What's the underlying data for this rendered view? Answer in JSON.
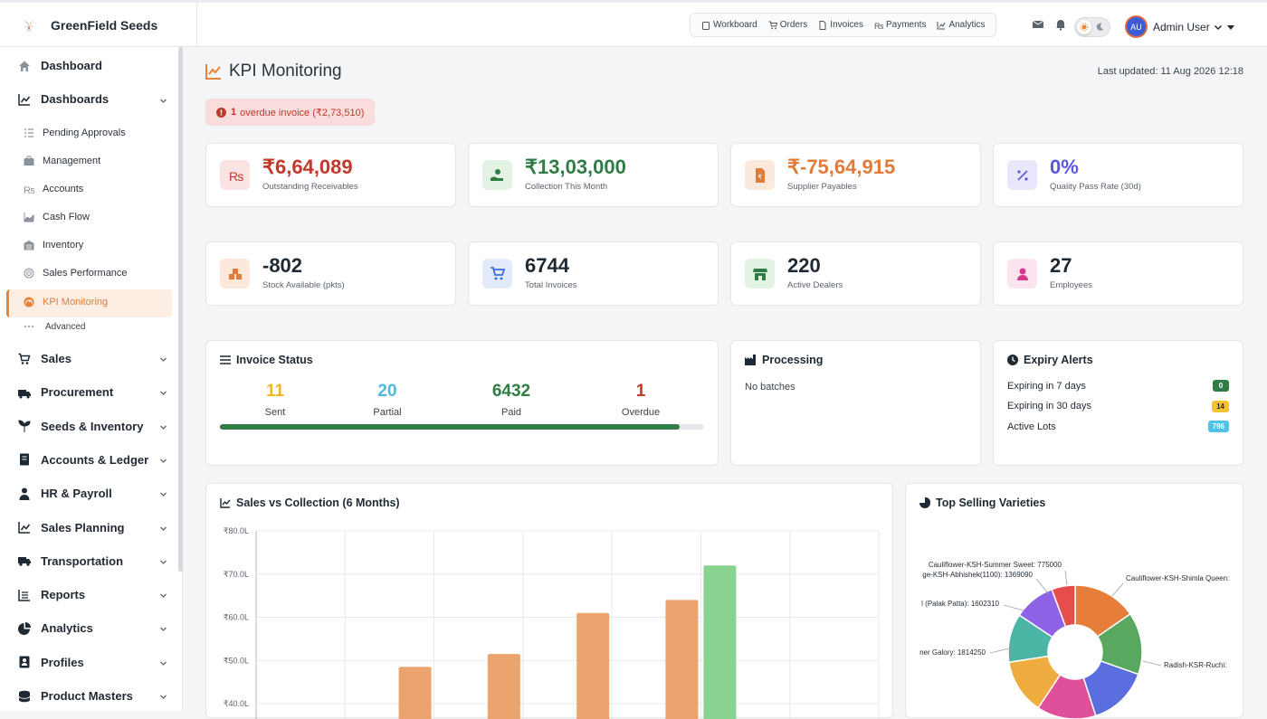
{
  "app": {
    "name": "GreenField Seeds"
  },
  "topnav": {
    "items": [
      "Workboard",
      "Orders",
      "Invoices",
      "Payments",
      "Analytics"
    ],
    "user": {
      "initials": "AU",
      "name": "Admin User"
    }
  },
  "sidebar": {
    "dashboard": "Dashboard",
    "dashboards": "Dashboards",
    "sub_items": [
      "Pending Approvals",
      "Management",
      "Accounts",
      "Cash Flow",
      "Inventory",
      "Sales Performance",
      "KPI Monitoring"
    ],
    "advanced": "Advanced",
    "groups": [
      "Sales",
      "Procurement",
      "Seeds & Inventory",
      "Accounts & Ledger",
      "HR & Payroll",
      "Sales Planning",
      "Transportation",
      "Reports",
      "Analytics",
      "Profiles",
      "Product Masters"
    ]
  },
  "page": {
    "title": "KPI Monitoring",
    "last_updated": "Last updated: 11 Aug 2026 12:18",
    "alert": {
      "count": "1",
      "text": "overdue invoice (₹2,73,510)"
    }
  },
  "kpis": [
    {
      "value": "₹6,64,089",
      "label": "Outstanding Receivables",
      "color": "#c0392b",
      "bg": "#fbe3e3",
      "icon": "rupee-icon"
    },
    {
      "value": "₹13,03,000",
      "label": "Collection This Month",
      "color": "#2f7d45",
      "bg": "#e2f3e6",
      "icon": "hand-coin-icon"
    },
    {
      "value": "₹-75,64,915",
      "label": "Supplier Payables",
      "color": "#e07b39",
      "bg": "#fde9dc",
      "icon": "invoice-icon"
    },
    {
      "value": "0%",
      "label": "Quality Pass Rate (30d)",
      "color": "#5b57d9",
      "bg": "#e8e7fb",
      "icon": "percent-icon"
    },
    {
      "value": "-802",
      "label": "Stock Available (pkts)",
      "color": "#1f2933",
      "bg": "#fde9dc",
      "icon": "boxes-icon"
    },
    {
      "value": "6744",
      "label": "Total Invoices",
      "color": "#1f2933",
      "bg": "#e3ebfb",
      "icon": "cart-icon"
    },
    {
      "value": "220",
      "label": "Active Dealers",
      "color": "#1f2933",
      "bg": "#e2f3e6",
      "icon": "store-icon"
    },
    {
      "value": "27",
      "label": "Employees",
      "color": "#1f2933",
      "bg": "#fbe3ef",
      "icon": "user-icon"
    }
  ],
  "invoice_status": {
    "title": "Invoice Status",
    "stats": [
      {
        "value": "11",
        "label": "Sent",
        "color": "#f0b429"
      },
      {
        "value": "20",
        "label": "Partial",
        "color": "#4fb9e0"
      },
      {
        "value": "6432",
        "label": "Paid",
        "color": "#2f7d45"
      },
      {
        "value": "1",
        "label": "Overdue",
        "color": "#c0392b"
      }
    ],
    "paid_fraction": 0.95
  },
  "processing": {
    "title": "Processing",
    "text": "No batches"
  },
  "expiry": {
    "title": "Expiry Alerts",
    "rows": [
      {
        "label": "Expiring in 7 days",
        "value": "0",
        "bg": "#2f7d45",
        "fg": "#ffffff"
      },
      {
        "label": "Expiring in 30 days",
        "value": "14",
        "bg": "#f4c430",
        "fg": "#1f2933"
      },
      {
        "label": "Active Lots",
        "value": "796",
        "bg": "#4fc3e8",
        "fg": "#ffffff"
      }
    ]
  },
  "sales_chart": {
    "title": "Sales vs Collection (6 Months)",
    "chart_data": {
      "type": "bar",
      "ylim": [
        40,
        80
      ],
      "yticks": [
        "₹80.0L",
        "₹70.0L",
        "₹60.0L",
        "₹50.0L",
        "₹40.0L"
      ],
      "series": [
        {
          "values": [
            null,
            48.5,
            51.5,
            61.0,
            64.0,
            null
          ],
          "color": "#eba46e"
        },
        {
          "values": [
            null,
            null,
            null,
            null,
            72.0,
            null
          ],
          "color": "#88d38f"
        }
      ]
    }
  },
  "top_varieties": {
    "title": "Top Selling Varieties",
    "chart_data": {
      "type": "pie",
      "labels": [
        "Cauliflower-KSH-Summer Sweet: 775000",
        "ge-KSH-Abhishek(1100): 1369090",
        "l (Palak Patta): 1602310",
        "ner Galory: 1814250",
        "Cauliflower-KSH-Shimla Queen:",
        "Radish-KSR-Ruchi:"
      ],
      "slices": [
        {
          "value": 2100000,
          "color": "#e67e3a"
        },
        {
          "value": 2050000,
          "color": "#5aa85f"
        },
        {
          "value": 2000000,
          "color": "#5b6ee0"
        },
        {
          "value": 1950000,
          "color": "#e0509a"
        },
        {
          "value": 1814250,
          "color": "#f0ad3f"
        },
        {
          "value": 1602310,
          "color": "#4bb6a6"
        },
        {
          "value": 1369090,
          "color": "#8d62e6"
        },
        {
          "value": 775000,
          "color": "#e64d4d"
        }
      ]
    }
  }
}
